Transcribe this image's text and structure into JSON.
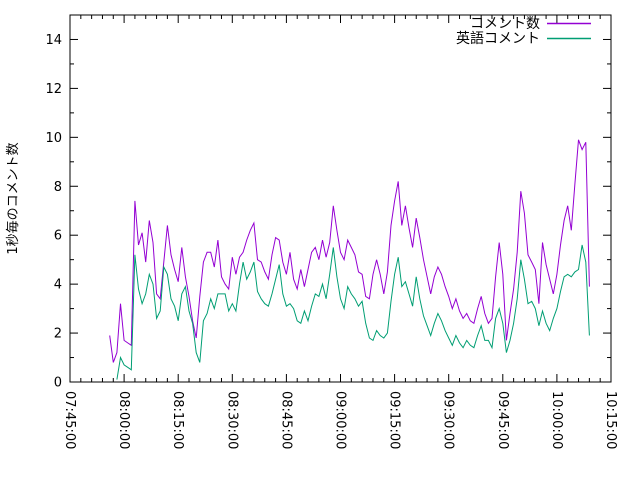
{
  "chart_data": {
    "type": "line",
    "title": "",
    "xlabel": "",
    "ylabel": "1秒毎のコメント数",
    "background": "#ffffff",
    "axis_color": "#000000",
    "grid": false,
    "legend": {
      "position": "top-right-inside",
      "entries": [
        "コメント数",
        "英語コメント"
      ]
    },
    "x_axis": {
      "start": "07:45:00",
      "end": "10:15:00",
      "major_tick_interval_minutes": 15,
      "minor_tick_interval_minutes": 3,
      "tick_labels": [
        "07:45:00",
        "08:00:00",
        "08:15:00",
        "08:30:00",
        "08:45:00",
        "09:00:00",
        "09:15:00",
        "09:30:00",
        "09:45:00",
        "10:00:00",
        "10:15:00"
      ]
    },
    "y_axis": {
      "min": 0,
      "max": 15,
      "major_ticks": [
        0,
        2,
        4,
        6,
        8,
        10,
        12,
        14
      ],
      "minor_tick_interval": 1
    },
    "series": [
      {
        "name": "コメント数",
        "color": "#9400d3",
        "points": [
          [
            "07:56",
            1.9
          ],
          [
            "07:57",
            0.8
          ],
          [
            "07:58",
            1.2
          ],
          [
            "07:59",
            3.2
          ],
          [
            "08:00",
            1.7
          ],
          [
            "08:01",
            1.6
          ],
          [
            "08:02",
            1.5
          ],
          [
            "08:03",
            7.4
          ],
          [
            "08:04",
            5.6
          ],
          [
            "08:05",
            6.1
          ],
          [
            "08:06",
            4.9
          ],
          [
            "08:07",
            6.6
          ],
          [
            "08:08",
            5.7
          ],
          [
            "08:09",
            3.6
          ],
          [
            "08:10",
            3.4
          ],
          [
            "08:11",
            4.9
          ],
          [
            "08:12",
            6.4
          ],
          [
            "08:13",
            5.2
          ],
          [
            "08:14",
            4.6
          ],
          [
            "08:15",
            4.1
          ],
          [
            "08:16",
            5.5
          ],
          [
            "08:17",
            4.3
          ],
          [
            "08:18",
            3.5
          ],
          [
            "08:19",
            2.5
          ],
          [
            "08:20",
            1.8
          ],
          [
            "08:21",
            3.5
          ],
          [
            "08:22",
            4.9
          ],
          [
            "08:23",
            5.3
          ],
          [
            "08:24",
            5.3
          ],
          [
            "08:25",
            4.7
          ],
          [
            "08:26",
            5.8
          ],
          [
            "08:27",
            4.3
          ],
          [
            "08:28",
            4.0
          ],
          [
            "08:29",
            3.8
          ],
          [
            "08:30",
            5.1
          ],
          [
            "08:31",
            4.4
          ],
          [
            "08:32",
            5.1
          ],
          [
            "08:33",
            5.3
          ],
          [
            "08:34",
            5.8
          ],
          [
            "08:35",
            6.2
          ],
          [
            "08:36",
            6.5
          ],
          [
            "08:37",
            5.0
          ],
          [
            "08:38",
            4.9
          ],
          [
            "08:39",
            4.5
          ],
          [
            "08:40",
            4.2
          ],
          [
            "08:41",
            5.2
          ],
          [
            "08:42",
            5.9
          ],
          [
            "08:43",
            5.8
          ],
          [
            "08:44",
            4.9
          ],
          [
            "08:45",
            4.4
          ],
          [
            "08:46",
            5.3
          ],
          [
            "08:47",
            4.2
          ],
          [
            "08:48",
            3.8
          ],
          [
            "08:49",
            4.6
          ],
          [
            "08:50",
            3.9
          ],
          [
            "08:51",
            4.6
          ],
          [
            "08:52",
            5.3
          ],
          [
            "08:53",
            5.5
          ],
          [
            "08:54",
            5.0
          ],
          [
            "08:55",
            5.8
          ],
          [
            "08:56",
            5.1
          ],
          [
            "08:57",
            5.7
          ],
          [
            "08:58",
            7.2
          ],
          [
            "08:59",
            6.2
          ],
          [
            "09:00",
            5.3
          ],
          [
            "09:01",
            5.0
          ],
          [
            "09:02",
            5.8
          ],
          [
            "09:03",
            5.5
          ],
          [
            "09:04",
            5.2
          ],
          [
            "09:05",
            4.5
          ],
          [
            "09:06",
            4.4
          ],
          [
            "09:07",
            3.5
          ],
          [
            "09:08",
            3.4
          ],
          [
            "09:09",
            4.4
          ],
          [
            "09:10",
            5.0
          ],
          [
            "09:11",
            4.4
          ],
          [
            "09:12",
            3.6
          ],
          [
            "09:13",
            4.5
          ],
          [
            "09:14",
            6.4
          ],
          [
            "09:15",
            7.4
          ],
          [
            "09:16",
            8.2
          ],
          [
            "09:17",
            6.4
          ],
          [
            "09:18",
            7.2
          ],
          [
            "09:19",
            6.3
          ],
          [
            "09:20",
            5.5
          ],
          [
            "09:21",
            6.7
          ],
          [
            "09:22",
            5.9
          ],
          [
            "09:23",
            5.0
          ],
          [
            "09:24",
            4.3
          ],
          [
            "09:25",
            3.6
          ],
          [
            "09:26",
            4.3
          ],
          [
            "09:27",
            4.7
          ],
          [
            "09:28",
            4.4
          ],
          [
            "09:29",
            3.9
          ],
          [
            "09:30",
            3.5
          ],
          [
            "09:31",
            3.0
          ],
          [
            "09:32",
            3.4
          ],
          [
            "09:33",
            2.9
          ],
          [
            "09:34",
            2.6
          ],
          [
            "09:35",
            2.8
          ],
          [
            "09:36",
            2.5
          ],
          [
            "09:37",
            2.4
          ],
          [
            "09:38",
            3.0
          ],
          [
            "09:39",
            3.5
          ],
          [
            "09:40",
            2.8
          ],
          [
            "09:41",
            2.4
          ],
          [
            "09:42",
            2.6
          ],
          [
            "09:43",
            4.3
          ],
          [
            "09:44",
            5.7
          ],
          [
            "09:45",
            4.4
          ],
          [
            "09:46",
            1.7
          ],
          [
            "09:47",
            2.8
          ],
          [
            "09:48",
            3.8
          ],
          [
            "09:49",
            5.3
          ],
          [
            "09:50",
            7.8
          ],
          [
            "09:51",
            6.9
          ],
          [
            "09:52",
            5.2
          ],
          [
            "09:53",
            4.9
          ],
          [
            "09:54",
            4.6
          ],
          [
            "09:55",
            3.2
          ],
          [
            "09:56",
            5.7
          ],
          [
            "09:57",
            4.8
          ],
          [
            "09:58",
            4.2
          ],
          [
            "09:59",
            3.6
          ],
          [
            "10:00",
            4.4
          ],
          [
            "10:01",
            5.6
          ],
          [
            "10:02",
            6.6
          ],
          [
            "10:03",
            7.2
          ],
          [
            "10:04",
            6.2
          ],
          [
            "10:05",
            8.1
          ],
          [
            "10:06",
            9.9
          ],
          [
            "10:07",
            9.5
          ],
          [
            "10:08",
            9.8
          ],
          [
            "10:09",
            3.9
          ]
        ]
      },
      {
        "name": "英語コメント",
        "color": "#009e73",
        "points": [
          [
            "07:58",
            0.1
          ],
          [
            "07:59",
            1.0
          ],
          [
            "08:00",
            0.7
          ],
          [
            "08:01",
            0.6
          ],
          [
            "08:02",
            0.5
          ],
          [
            "08:03",
            5.2
          ],
          [
            "08:04",
            3.8
          ],
          [
            "08:05",
            3.2
          ],
          [
            "08:06",
            3.6
          ],
          [
            "08:07",
            4.4
          ],
          [
            "08:08",
            4.0
          ],
          [
            "08:09",
            2.6
          ],
          [
            "08:10",
            2.9
          ],
          [
            "08:11",
            4.7
          ],
          [
            "08:12",
            4.4
          ],
          [
            "08:13",
            3.4
          ],
          [
            "08:14",
            3.1
          ],
          [
            "08:15",
            2.5
          ],
          [
            "08:16",
            3.6
          ],
          [
            "08:17",
            3.9
          ],
          [
            "08:18",
            2.9
          ],
          [
            "08:19",
            2.4
          ],
          [
            "08:20",
            1.2
          ],
          [
            "08:21",
            0.8
          ],
          [
            "08:22",
            2.5
          ],
          [
            "08:23",
            2.8
          ],
          [
            "08:24",
            3.4
          ],
          [
            "08:25",
            3.0
          ],
          [
            "08:26",
            3.6
          ],
          [
            "08:27",
            3.6
          ],
          [
            "08:28",
            3.6
          ],
          [
            "08:29",
            2.9
          ],
          [
            "08:30",
            3.2
          ],
          [
            "08:31",
            2.9
          ],
          [
            "08:32",
            4.0
          ],
          [
            "08:33",
            4.9
          ],
          [
            "08:34",
            4.2
          ],
          [
            "08:35",
            4.5
          ],
          [
            "08:36",
            4.9
          ],
          [
            "08:37",
            3.7
          ],
          [
            "08:38",
            3.4
          ],
          [
            "08:39",
            3.2
          ],
          [
            "08:40",
            3.1
          ],
          [
            "08:41",
            3.6
          ],
          [
            "08:42",
            4.2
          ],
          [
            "08:43",
            4.8
          ],
          [
            "08:44",
            3.6
          ],
          [
            "08:45",
            3.1
          ],
          [
            "08:46",
            3.2
          ],
          [
            "08:47",
            3.0
          ],
          [
            "08:48",
            2.5
          ],
          [
            "08:49",
            2.4
          ],
          [
            "08:50",
            2.9
          ],
          [
            "08:51",
            2.5
          ],
          [
            "08:52",
            3.1
          ],
          [
            "08:53",
            3.6
          ],
          [
            "08:54",
            3.5
          ],
          [
            "08:55",
            4.0
          ],
          [
            "08:56",
            3.4
          ],
          [
            "08:57",
            4.4
          ],
          [
            "08:58",
            5.5
          ],
          [
            "08:59",
            4.3
          ],
          [
            "09:00",
            3.4
          ],
          [
            "09:01",
            3.0
          ],
          [
            "09:02",
            3.9
          ],
          [
            "09:03",
            3.6
          ],
          [
            "09:04",
            3.4
          ],
          [
            "09:05",
            3.1
          ],
          [
            "09:06",
            3.3
          ],
          [
            "09:07",
            2.4
          ],
          [
            "09:08",
            1.8
          ],
          [
            "09:09",
            1.7
          ],
          [
            "09:10",
            2.1
          ],
          [
            "09:11",
            1.9
          ],
          [
            "09:12",
            1.8
          ],
          [
            "09:13",
            2.0
          ],
          [
            "09:14",
            3.3
          ],
          [
            "09:15",
            4.4
          ],
          [
            "09:16",
            5.1
          ],
          [
            "09:17",
            3.9
          ],
          [
            "09:18",
            4.1
          ],
          [
            "09:19",
            3.6
          ],
          [
            "09:20",
            3.1
          ],
          [
            "09:21",
            4.3
          ],
          [
            "09:22",
            3.4
          ],
          [
            "09:23",
            2.7
          ],
          [
            "09:24",
            2.3
          ],
          [
            "09:25",
            1.9
          ],
          [
            "09:26",
            2.4
          ],
          [
            "09:27",
            2.8
          ],
          [
            "09:28",
            2.5
          ],
          [
            "09:29",
            2.1
          ],
          [
            "09:30",
            1.8
          ],
          [
            "09:31",
            1.5
          ],
          [
            "09:32",
            1.9
          ],
          [
            "09:33",
            1.6
          ],
          [
            "09:34",
            1.4
          ],
          [
            "09:35",
            1.7
          ],
          [
            "09:36",
            1.5
          ],
          [
            "09:37",
            1.4
          ],
          [
            "09:38",
            1.9
          ],
          [
            "09:39",
            2.3
          ],
          [
            "09:40",
            1.7
          ],
          [
            "09:41",
            1.7
          ],
          [
            "09:42",
            1.4
          ],
          [
            "09:43",
            2.6
          ],
          [
            "09:44",
            3.0
          ],
          [
            "09:45",
            2.4
          ],
          [
            "09:46",
            1.2
          ],
          [
            "09:47",
            1.7
          ],
          [
            "09:48",
            2.4
          ],
          [
            "09:49",
            3.4
          ],
          [
            "09:50",
            5.0
          ],
          [
            "09:51",
            4.2
          ],
          [
            "09:52",
            3.2
          ],
          [
            "09:53",
            3.3
          ],
          [
            "09:54",
            3.0
          ],
          [
            "09:55",
            2.3
          ],
          [
            "09:56",
            2.9
          ],
          [
            "09:57",
            2.4
          ],
          [
            "09:58",
            2.1
          ],
          [
            "09:59",
            2.6
          ],
          [
            "10:00",
            3.0
          ],
          [
            "10:01",
            3.7
          ],
          [
            "10:02",
            4.3
          ],
          [
            "10:03",
            4.4
          ],
          [
            "10:04",
            4.3
          ],
          [
            "10:05",
            4.5
          ],
          [
            "10:06",
            4.6
          ],
          [
            "10:07",
            5.6
          ],
          [
            "10:08",
            4.9
          ],
          [
            "10:09",
            1.9
          ]
        ]
      }
    ]
  }
}
